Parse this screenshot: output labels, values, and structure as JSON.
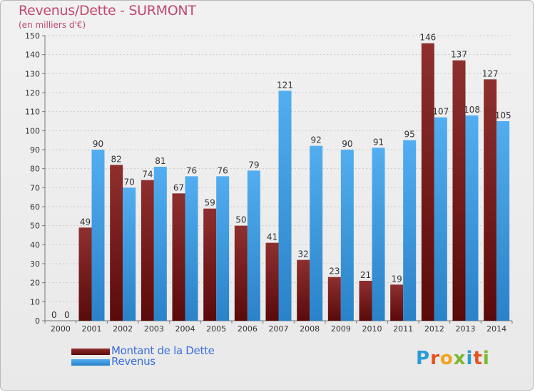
{
  "title": "Revenus/Dette - SURMONT",
  "subtitle": "(en milliers d'€)",
  "logo": {
    "text": "Proxiti",
    "colors": [
      "#2c9ad6",
      "#e8541e",
      "#f3a21c",
      "#7ab92d",
      "#2c9ad6",
      "#e8541e",
      "#7ab92d"
    ]
  },
  "colors": {
    "dette": "#7a1e1e",
    "revenus": "#3a9be0",
    "title": "#c0496e",
    "legend_text": "#3c6edc"
  },
  "legend": [
    {
      "label": "Montant de la Dette",
      "color": "#7a1e1e"
    },
    {
      "label": "Revenus",
      "color": "#3a9be0"
    }
  ],
  "chart_data": {
    "type": "bar",
    "title": "Revenus/Dette - SURMONT",
    "subtitle": "(en milliers d'€)",
    "xlabel": "",
    "ylabel": "",
    "ylim": [
      0,
      150
    ],
    "ytick_step": 10,
    "categories": [
      "2000",
      "2001",
      "2002",
      "2003",
      "2004",
      "2005",
      "2006",
      "2007",
      "2008",
      "2009",
      "2010",
      "2011",
      "2012",
      "2013",
      "2014"
    ],
    "series": [
      {
        "name": "Montant de la Dette",
        "values": [
          0,
          49,
          82,
          74,
          67,
          59,
          50,
          41,
          32,
          23,
          21,
          19,
          146,
          137,
          127
        ]
      },
      {
        "name": "Revenus",
        "values": [
          0,
          90,
          70,
          81,
          76,
          76,
          79,
          121,
          92,
          90,
          91,
          95,
          107,
          108,
          105
        ]
      }
    ],
    "grid": true,
    "legend_position": "bottom-left"
  }
}
